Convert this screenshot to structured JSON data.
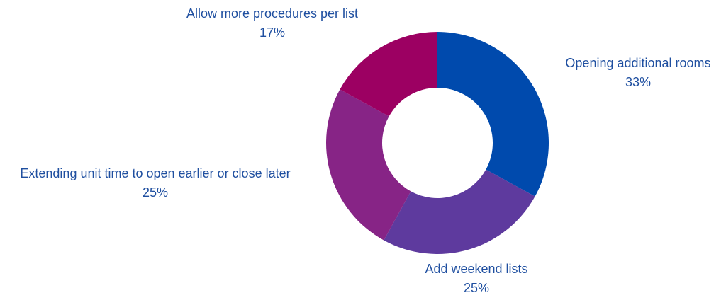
{
  "chart_data": {
    "type": "pie",
    "variant": "donut",
    "title": "",
    "legend": "none",
    "slices": [
      {
        "label": "Opening additional rooms",
        "value": 33,
        "value_label": "33%",
        "color": "#004aad"
      },
      {
        "label": "Add weekend lists",
        "value": 25,
        "value_label": "25%",
        "color": "#5e3a9e"
      },
      {
        "label": "Extending unit time to open earlier or close later",
        "value": 25,
        "value_label": "25%",
        "color": "#872486"
      },
      {
        "label": "Allow more procedures per list",
        "value": 17,
        "value_label": "17%",
        "color": "#9c0062"
      }
    ],
    "label_color": "#1f4fa0"
  }
}
